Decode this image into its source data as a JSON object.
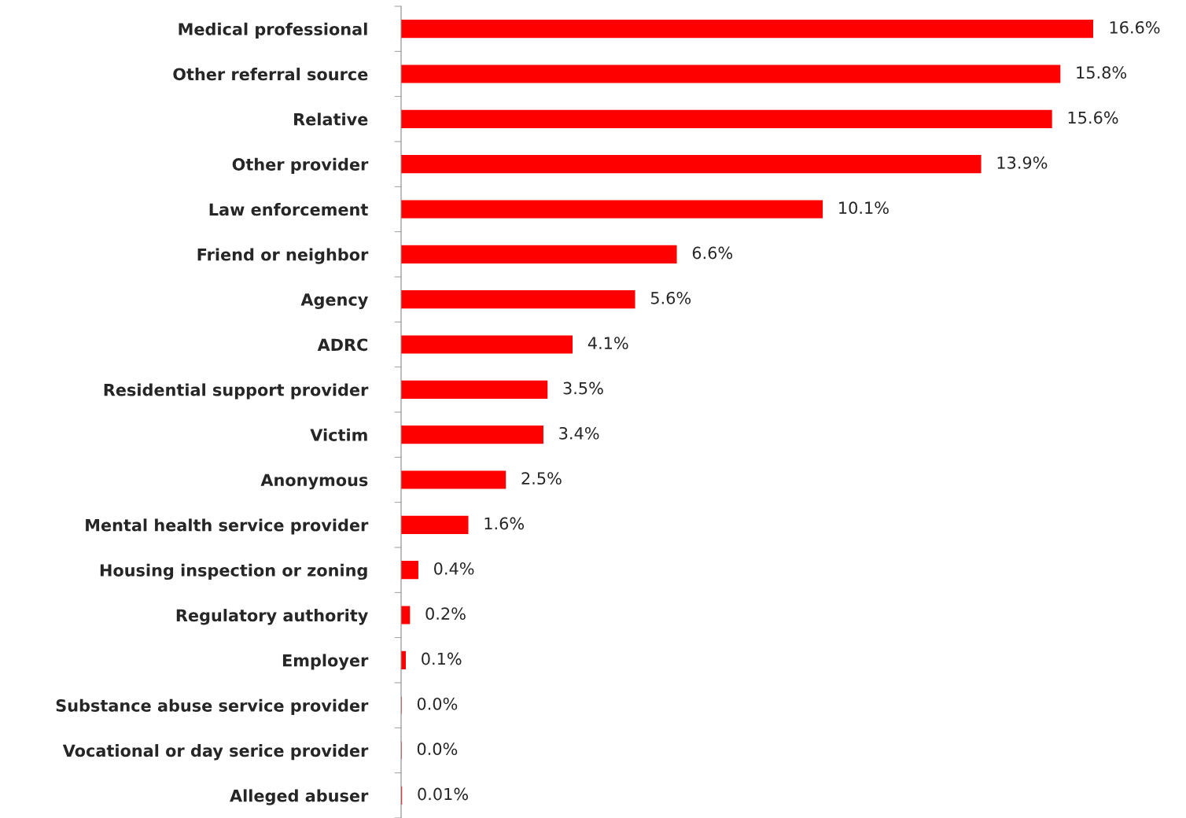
{
  "chart_data": {
    "type": "bar",
    "orientation": "horizontal",
    "categories": [
      "Medical professional",
      "Other referral source",
      "Relative",
      "Other provider",
      "Law enforcement",
      "Friend or neighbor",
      "Agency",
      "ADRC",
      "Residential support provider",
      "Victim",
      "Anonymous",
      "Mental health service provider",
      "Housing inspection or zoning",
      "Regulatory authority",
      "Employer",
      "Substance abuse service provider",
      "Vocational or day serice provider",
      "Alleged abuser"
    ],
    "values": [
      16.6,
      15.8,
      15.6,
      13.9,
      10.1,
      6.6,
      5.6,
      4.1,
      3.5,
      3.4,
      2.5,
      1.6,
      0.4,
      0.2,
      0.1,
      0.0,
      0.0,
      0.01
    ],
    "value_labels": [
      "16.6%",
      "15.8%",
      "15.6%",
      "13.9%",
      "10.1%",
      "6.6%",
      "5.6%",
      "4.1%",
      "3.5%",
      "3.4%",
      "2.5%",
      "1.6%",
      "0.4%",
      "0.2%",
      "0.1%",
      "0.0%",
      "0.0%",
      "0.01%"
    ],
    "color": "#ff0000",
    "grid": false,
    "legend": false,
    "tick_labels": "y"
  }
}
